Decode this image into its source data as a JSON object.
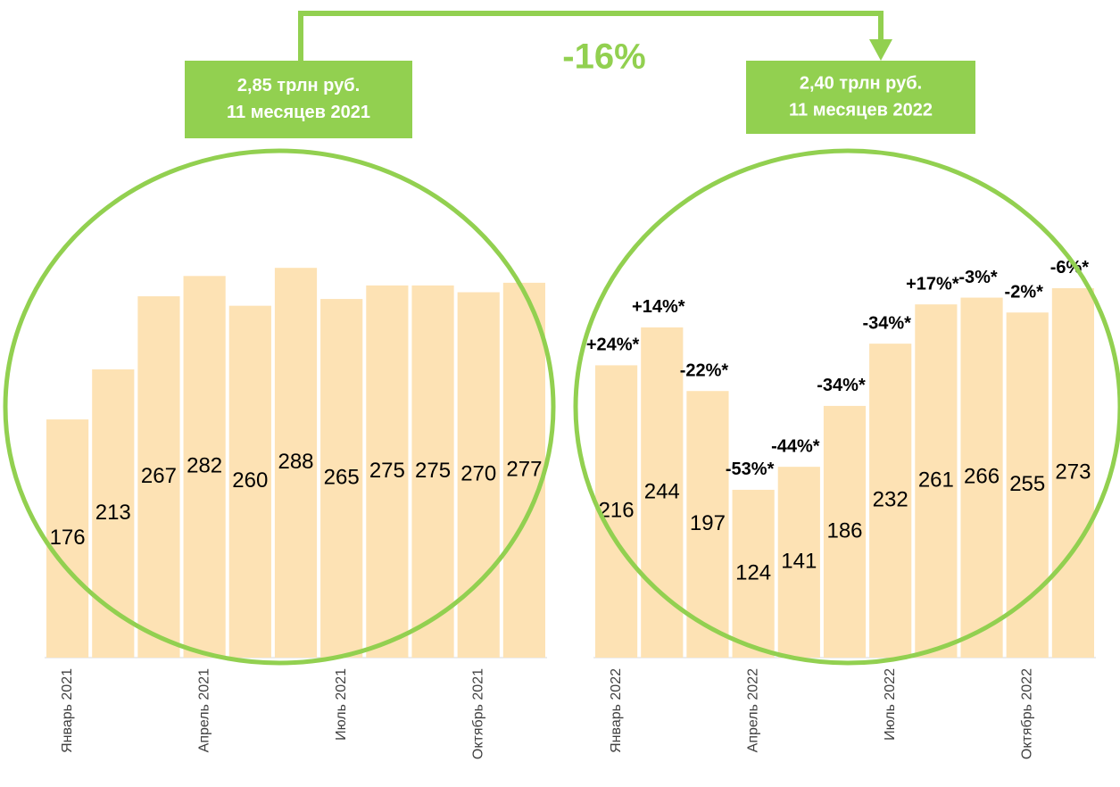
{
  "change_label": "-16%",
  "chart_data": [
    {
      "type": "bar",
      "color": "#fde2b4",
      "ylim": [
        0,
        300
      ],
      "box_lines": [
        "2,85 трлн руб.",
        "11 месяцев 2021"
      ],
      "categories": [
        "Январь 2021",
        null,
        null,
        "Апрель 2021",
        null,
        null,
        "Июль 2021",
        null,
        null,
        "Октябрь 2021",
        null
      ],
      "values": [
        176,
        213,
        267,
        282,
        260,
        288,
        265,
        275,
        275,
        270,
        277
      ]
    },
    {
      "type": "bar",
      "color": "#fde2b4",
      "ylim": [
        0,
        300
      ],
      "box_lines": [
        "2,40 трлн руб.",
        "11 месяцев 2022"
      ],
      "categories": [
        "Январь 2022",
        null,
        null,
        "Апрель 2022",
        null,
        null,
        "Июль 2022",
        null,
        null,
        "Октябрь 2022",
        null
      ],
      "values": [
        216,
        244,
        197,
        124,
        141,
        186,
        232,
        261,
        266,
        255,
        273
      ],
      "annotations": [
        "+24%*",
        "+14%*",
        "-22%*",
        "-53%*",
        "-44%*",
        "-34%*",
        "-34%*",
        "+17%*",
        "-3%*",
        "-2%*",
        "-6%*"
      ]
    }
  ]
}
